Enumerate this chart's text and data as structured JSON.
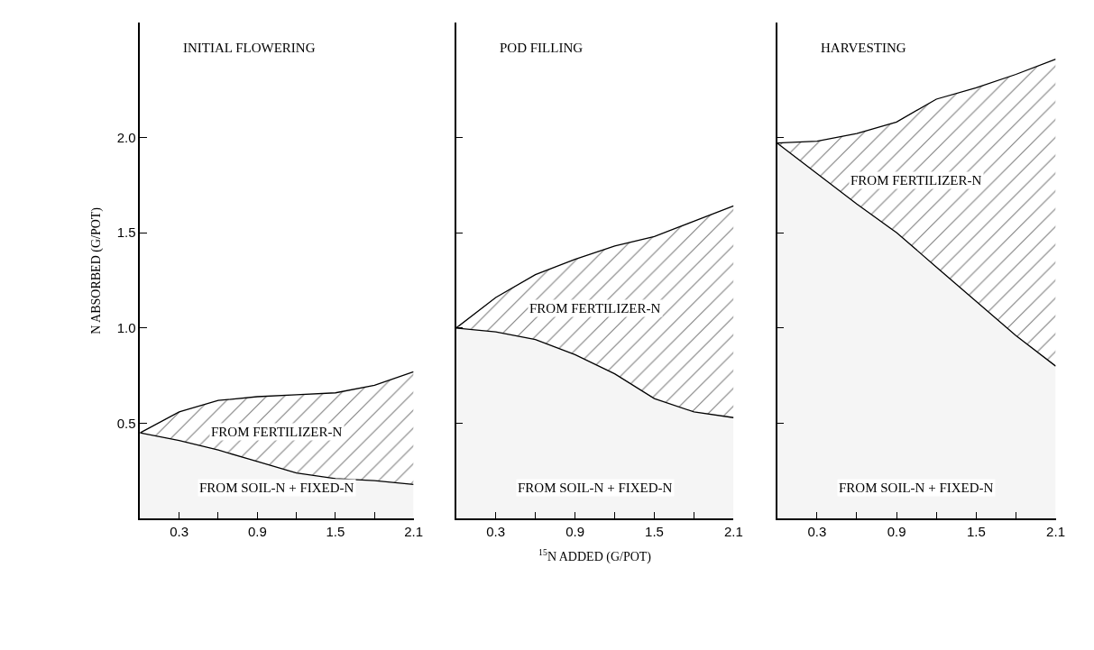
{
  "chart_data": [
    {
      "type": "area",
      "title": "INITIAL FLOWERING",
      "ylabel": "N ABSORBED (G/POT)",
      "stacked": true,
      "x": [
        0,
        0.3,
        0.6,
        0.9,
        1.2,
        1.5,
        1.8,
        2.1
      ],
      "xlim": [
        0,
        2.1
      ],
      "ylim": [
        0,
        2.6
      ],
      "xticks": [
        0.3,
        {
          "value": 0.6,
          "label": null
        },
        0.9,
        {
          "value": 1.2,
          "label": null
        },
        1.5,
        {
          "value": 1.8,
          "label": null
        },
        2.1
      ],
      "yticks": [
        0.5,
        {
          "value": 1.0,
          "label": "1.0"
        },
        1.5,
        {
          "value": 2.0,
          "label": "2.0"
        }
      ],
      "series": [
        {
          "name": "FROM SOIL-N + FIXED-N",
          "color": "#000000",
          "values": [
            0.45,
            0.41,
            0.36,
            0.3,
            0.24,
            0.21,
            0.2,
            0.18
          ]
        },
        {
          "name": "FROM FERTILIZER-N",
          "color": "#000000",
          "values": [
            0.0,
            0.15,
            0.26,
            0.34,
            0.41,
            0.45,
            0.5,
            0.59
          ]
        }
      ]
    },
    {
      "type": "area",
      "title": "POD FILLING",
      "xlabel": "$^{15}$N ADDED (G/POT)",
      "stacked": true,
      "tick_labels": "x",
      "x": [
        0,
        0.3,
        0.6,
        0.9,
        1.2,
        1.5,
        1.8,
        2.1
      ],
      "xlim": [
        0,
        2.1
      ],
      "ylim": [
        0,
        2.6
      ],
      "xticks": [
        0.3,
        {
          "value": 0.6,
          "label": null
        },
        0.9,
        {
          "value": 1.2,
          "label": null
        },
        1.5,
        {
          "value": 1.8,
          "label": null
        },
        2.1
      ],
      "yticks": [
        0.5,
        1.0,
        1.5,
        2.0
      ],
      "series": [
        {
          "name": "FROM SOIL-N + FIXED-N",
          "color": "#000000",
          "values": [
            1.0,
            0.98,
            0.94,
            0.86,
            0.76,
            0.63,
            0.56,
            0.53
          ]
        },
        {
          "name": "FROM FERTILIZER-N",
          "color": "#000000",
          "values": [
            0.0,
            0.18,
            0.34,
            0.5,
            0.67,
            0.85,
            1.0,
            1.11
          ]
        }
      ]
    },
    {
      "type": "area",
      "title": "HARVESTING",
      "stacked": true,
      "tick_labels": "x",
      "x": [
        0,
        0.3,
        0.6,
        0.9,
        1.2,
        1.5,
        1.8,
        2.1
      ],
      "xlim": [
        0,
        2.1
      ],
      "ylim": [
        0,
        2.6
      ],
      "xticks": [
        0.3,
        {
          "value": 0.6,
          "label": null
        },
        0.9,
        {
          "value": 1.2,
          "label": null
        },
        1.5,
        {
          "value": 1.8,
          "label": null
        },
        2.1
      ],
      "yticks": [
        0.5,
        1.0,
        1.5,
        2.0
      ],
      "series": [
        {
          "name": "FROM SOIL-N + FIXED-N",
          "color": "#000000",
          "values": [
            1.97,
            1.81,
            1.65,
            1.5,
            1.32,
            1.14,
            0.96,
            0.8
          ]
        },
        {
          "name": "FROM FERTILIZER-N",
          "color": "#000000",
          "values": [
            0.0,
            0.17,
            0.37,
            0.58,
            0.88,
            1.12,
            1.37,
            1.61
          ]
        }
      ]
    }
  ]
}
